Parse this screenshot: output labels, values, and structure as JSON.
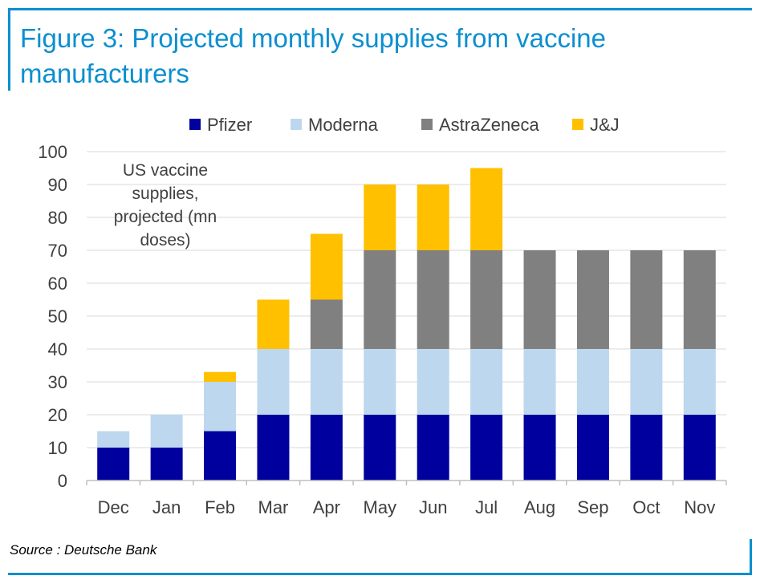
{
  "header": {
    "title": "Figure 3: Projected monthly supplies from vaccine manufacturers"
  },
  "footer": {
    "source": "Source : Deutsche Bank"
  },
  "chart_data": {
    "type": "bar",
    "stacked": true,
    "title": "Figure 3: Projected monthly supplies from vaccine manufacturers",
    "annotation": [
      "US vaccine",
      "supplies,",
      "projected (mn",
      "doses)"
    ],
    "categories": [
      "Dec",
      "Jan",
      "Feb",
      "Mar",
      "Apr",
      "May",
      "Jun",
      "Jul",
      "Aug",
      "Sep",
      "Oct",
      "Nov"
    ],
    "series": [
      {
        "name": "Pfizer",
        "color": "#00009e",
        "values": [
          10,
          10,
          15,
          20,
          20,
          20,
          20,
          20,
          20,
          20,
          20,
          20
        ]
      },
      {
        "name": "Moderna",
        "color": "#bdd7ee",
        "values": [
          5,
          10,
          15,
          20,
          20,
          20,
          20,
          20,
          20,
          20,
          20,
          20
        ]
      },
      {
        "name": "AstraZeneca",
        "color": "#808080",
        "values": [
          0,
          0,
          0,
          0,
          15,
          30,
          30,
          30,
          30,
          30,
          30,
          30
        ]
      },
      {
        "name": "J&J",
        "color": "#ffc000",
        "values": [
          0,
          0,
          3,
          15,
          20,
          20,
          20,
          25,
          0,
          0,
          0,
          0
        ]
      }
    ],
    "xlabel": "",
    "ylabel": "",
    "ylim": [
      0,
      100
    ],
    "yticks": [
      0,
      10,
      20,
      30,
      40,
      50,
      60,
      70,
      80,
      90,
      100
    ],
    "grid": true,
    "legend_position": "top-center"
  }
}
